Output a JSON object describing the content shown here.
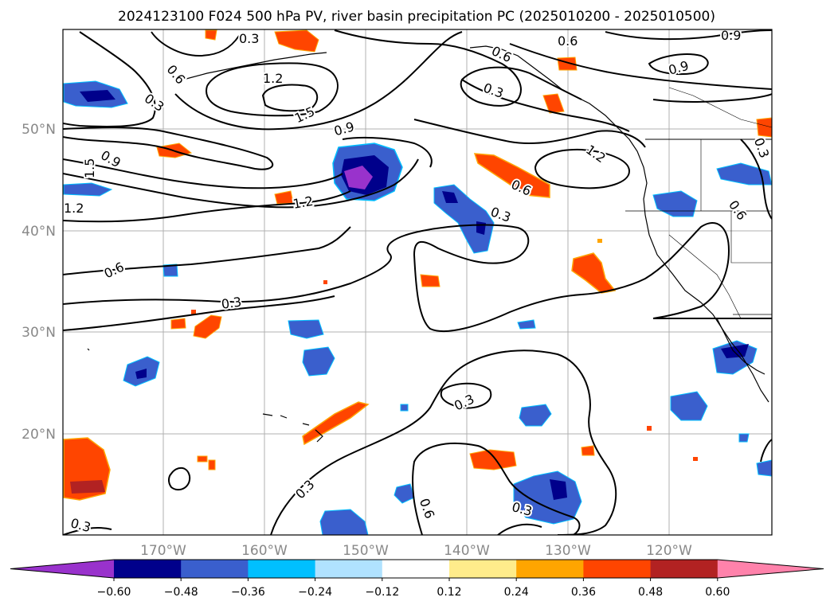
{
  "title": "2024123100 F024 500 hPa PV, river basin precipitation PC (2025010200 - 2025010500)",
  "lat_labels": [
    "50°N",
    "40°N",
    "30°N",
    "20°N"
  ],
  "lon_labels": [
    "170°W",
    "160°W",
    "150°W",
    "140°W",
    "130°W",
    "120°W"
  ],
  "colorbar": {
    "ticks": [
      "−0.60",
      "−0.48",
      "−0.36",
      "−0.24",
      "−0.12",
      "0.12",
      "0.24",
      "0.36",
      "0.48",
      "0.60"
    ],
    "colors": [
      "#9932cc",
      "#00008b",
      "#3a5fcd",
      "#00bfff",
      "#b0e2ff",
      "#ffffff",
      "#ffec8b",
      "#ffa500",
      "#ff4500",
      "#b22222",
      "#ff82ab"
    ]
  },
  "contour_labels": [
    "0.3",
    "0.6",
    "0.9",
    "1.2",
    "1.5"
  ],
  "colors": {
    "grid": "#b0b0b0",
    "coast": "#000000",
    "contour": "#000000",
    "tick_text": "#888888"
  }
}
